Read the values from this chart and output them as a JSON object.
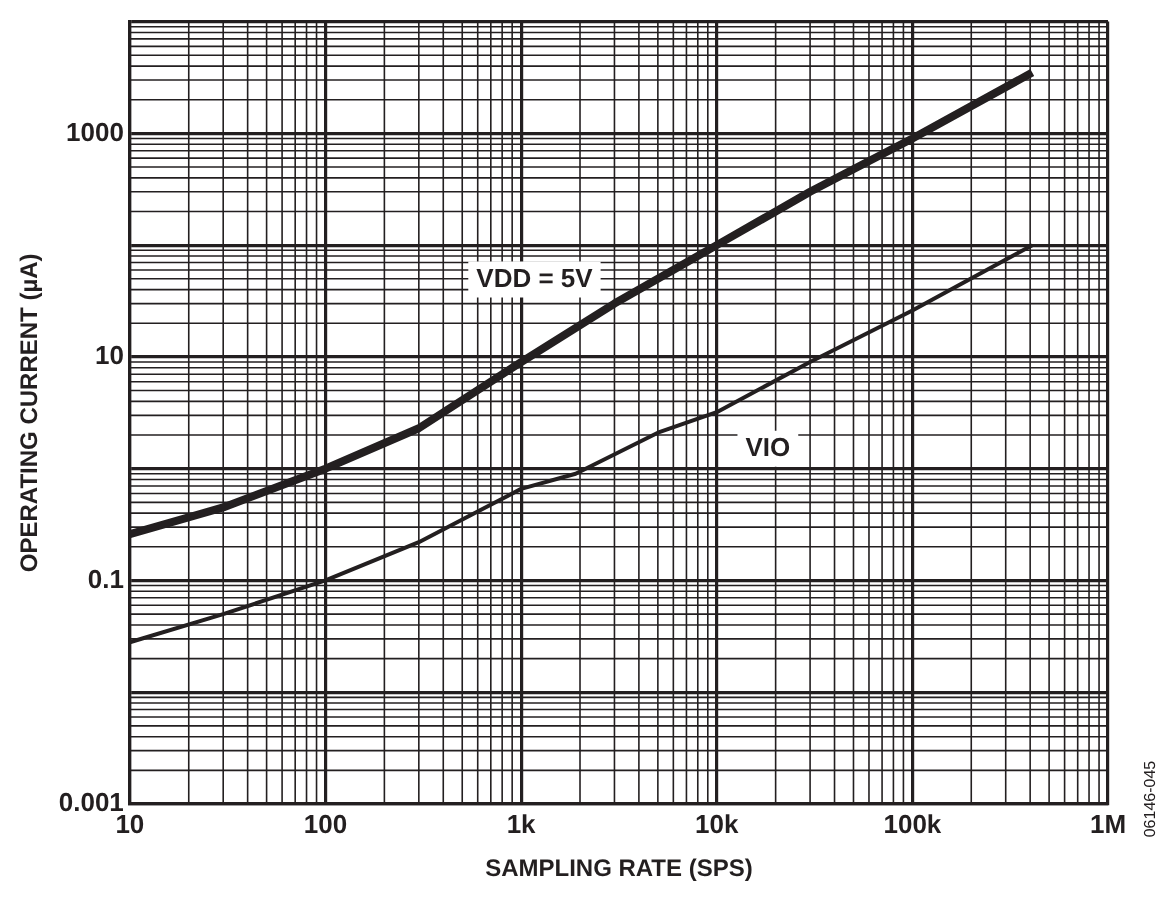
{
  "chart_data": {
    "type": "line",
    "xlabel": "SAMPLING RATE (SPS)",
    "ylabel": "OPERATING CURRENT (µA)",
    "log": "xy",
    "grid": true,
    "legend": false,
    "marker": "none",
    "line_style": "solid",
    "xlim": [
      10,
      1000000
    ],
    "xticks": [
      10,
      100,
      {
        "value": 1000,
        "label": "1k"
      },
      {
        "value": 10000,
        "label": "10k"
      },
      {
        "value": 100000,
        "label": "100k"
      },
      {
        "value": 1000000,
        "label": "1M"
      }
    ],
    "ylim": [
      0.001,
      10000
    ],
    "yticks": [
      0.001,
      {
        "value": 0.01,
        "label": null
      },
      0.1,
      {
        "value": 1,
        "label": null
      },
      10,
      {
        "value": 100,
        "label": null
      },
      1000,
      {
        "value": 10000,
        "label": null
      }
    ],
    "series": [
      {
        "name": "VDD = 5V",
        "color": "#231f20",
        "x": [
          10,
          30,
          100,
          300,
          1000,
          3000,
          10000,
          30000,
          100000,
          410000
        ],
        "values": [
          0.26,
          0.45,
          1.0,
          2.3,
          9,
          30,
          100,
          300,
          900,
          3500
        ]
      },
      {
        "name": "VIO",
        "color": "#231f20",
        "x": [
          10,
          30,
          100,
          300,
          1000,
          1900,
          5000,
          10000,
          30000,
          100000,
          410000
        ],
        "values": [
          0.028,
          0.05,
          0.1,
          0.22,
          0.66,
          0.9,
          2.1,
          3.2,
          9,
          26,
          100
        ]
      }
    ],
    "annotations": [
      "06146-045"
    ]
  }
}
